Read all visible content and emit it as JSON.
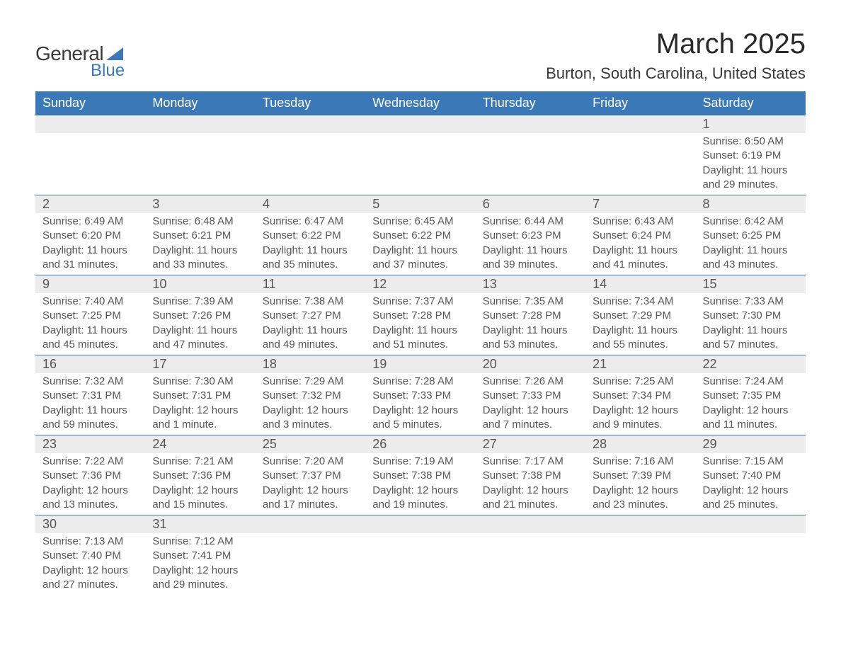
{
  "logo": {
    "text1": "General",
    "text2": "Blue",
    "tri_color": "#3a78b8"
  },
  "title": "March 2025",
  "location": "Burton, South Carolina, United States",
  "header_bg": "#3a78b8",
  "header_fg": "#ffffff",
  "daynum_bg": "#ececec",
  "border_color": "#3a78b8",
  "text_color": "#555555",
  "weekdays": [
    "Sunday",
    "Monday",
    "Tuesday",
    "Wednesday",
    "Thursday",
    "Friday",
    "Saturday"
  ],
  "weeks": [
    [
      null,
      null,
      null,
      null,
      null,
      null,
      {
        "n": "1",
        "sr": "6:50 AM",
        "ss": "6:19 PM",
        "dl": "11 hours and 29 minutes."
      }
    ],
    [
      {
        "n": "2",
        "sr": "6:49 AM",
        "ss": "6:20 PM",
        "dl": "11 hours and 31 minutes."
      },
      {
        "n": "3",
        "sr": "6:48 AM",
        "ss": "6:21 PM",
        "dl": "11 hours and 33 minutes."
      },
      {
        "n": "4",
        "sr": "6:47 AM",
        "ss": "6:22 PM",
        "dl": "11 hours and 35 minutes."
      },
      {
        "n": "5",
        "sr": "6:45 AM",
        "ss": "6:22 PM",
        "dl": "11 hours and 37 minutes."
      },
      {
        "n": "6",
        "sr": "6:44 AM",
        "ss": "6:23 PM",
        "dl": "11 hours and 39 minutes."
      },
      {
        "n": "7",
        "sr": "6:43 AM",
        "ss": "6:24 PM",
        "dl": "11 hours and 41 minutes."
      },
      {
        "n": "8",
        "sr": "6:42 AM",
        "ss": "6:25 PM",
        "dl": "11 hours and 43 minutes."
      }
    ],
    [
      {
        "n": "9",
        "sr": "7:40 AM",
        "ss": "7:25 PM",
        "dl": "11 hours and 45 minutes."
      },
      {
        "n": "10",
        "sr": "7:39 AM",
        "ss": "7:26 PM",
        "dl": "11 hours and 47 minutes."
      },
      {
        "n": "11",
        "sr": "7:38 AM",
        "ss": "7:27 PM",
        "dl": "11 hours and 49 minutes."
      },
      {
        "n": "12",
        "sr": "7:37 AM",
        "ss": "7:28 PM",
        "dl": "11 hours and 51 minutes."
      },
      {
        "n": "13",
        "sr": "7:35 AM",
        "ss": "7:28 PM",
        "dl": "11 hours and 53 minutes."
      },
      {
        "n": "14",
        "sr": "7:34 AM",
        "ss": "7:29 PM",
        "dl": "11 hours and 55 minutes."
      },
      {
        "n": "15",
        "sr": "7:33 AM",
        "ss": "7:30 PM",
        "dl": "11 hours and 57 minutes."
      }
    ],
    [
      {
        "n": "16",
        "sr": "7:32 AM",
        "ss": "7:31 PM",
        "dl": "11 hours and 59 minutes."
      },
      {
        "n": "17",
        "sr": "7:30 AM",
        "ss": "7:31 PM",
        "dl": "12 hours and 1 minute."
      },
      {
        "n": "18",
        "sr": "7:29 AM",
        "ss": "7:32 PM",
        "dl": "12 hours and 3 minutes."
      },
      {
        "n": "19",
        "sr": "7:28 AM",
        "ss": "7:33 PM",
        "dl": "12 hours and 5 minutes."
      },
      {
        "n": "20",
        "sr": "7:26 AM",
        "ss": "7:33 PM",
        "dl": "12 hours and 7 minutes."
      },
      {
        "n": "21",
        "sr": "7:25 AM",
        "ss": "7:34 PM",
        "dl": "12 hours and 9 minutes."
      },
      {
        "n": "22",
        "sr": "7:24 AM",
        "ss": "7:35 PM",
        "dl": "12 hours and 11 minutes."
      }
    ],
    [
      {
        "n": "23",
        "sr": "7:22 AM",
        "ss": "7:36 PM",
        "dl": "12 hours and 13 minutes."
      },
      {
        "n": "24",
        "sr": "7:21 AM",
        "ss": "7:36 PM",
        "dl": "12 hours and 15 minutes."
      },
      {
        "n": "25",
        "sr": "7:20 AM",
        "ss": "7:37 PM",
        "dl": "12 hours and 17 minutes."
      },
      {
        "n": "26",
        "sr": "7:19 AM",
        "ss": "7:38 PM",
        "dl": "12 hours and 19 minutes."
      },
      {
        "n": "27",
        "sr": "7:17 AM",
        "ss": "7:38 PM",
        "dl": "12 hours and 21 minutes."
      },
      {
        "n": "28",
        "sr": "7:16 AM",
        "ss": "7:39 PM",
        "dl": "12 hours and 23 minutes."
      },
      {
        "n": "29",
        "sr": "7:15 AM",
        "ss": "7:40 PM",
        "dl": "12 hours and 25 minutes."
      }
    ],
    [
      {
        "n": "30",
        "sr": "7:13 AM",
        "ss": "7:40 PM",
        "dl": "12 hours and 27 minutes."
      },
      {
        "n": "31",
        "sr": "7:12 AM",
        "ss": "7:41 PM",
        "dl": "12 hours and 29 minutes."
      },
      null,
      null,
      null,
      null,
      null
    ]
  ],
  "labels": {
    "sunrise": "Sunrise:",
    "sunset": "Sunset:",
    "daylight": "Daylight:"
  }
}
